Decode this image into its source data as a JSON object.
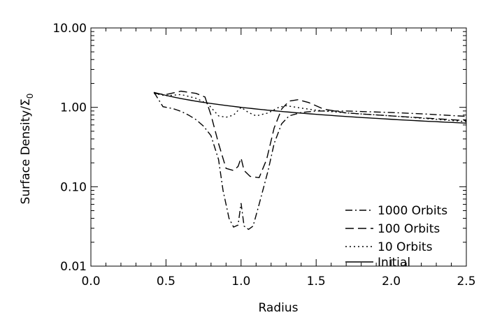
{
  "chart_data": {
    "type": "line",
    "xlabel": "Radius",
    "ylabel": "Surface Density/Σ",
    "ylabel_subscript": "0",
    "xlim": [
      0.0,
      2.5
    ],
    "ylim": [
      0.01,
      10.0
    ],
    "yscale": "log",
    "grid": false,
    "legend_position": "bottom-right",
    "x_ticks": [
      0.0,
      0.5,
      1.0,
      1.5,
      2.0,
      2.5
    ],
    "x_tick_labels": [
      "0.0",
      "0.5",
      "1.0",
      "1.5",
      "2.0",
      "2.5"
    ],
    "y_ticks": [
      0.01,
      0.1,
      1.0,
      10.0
    ],
    "y_tick_labels": [
      "0.01",
      "0.10",
      "1.00",
      "10.00"
    ],
    "series": [
      {
        "name": "1000 Orbits",
        "style": "dashdot",
        "points": [
          [
            0.42,
            1.55
          ],
          [
            0.48,
            1.02
          ],
          [
            0.55,
            0.96
          ],
          [
            0.6,
            0.89
          ],
          [
            0.65,
            0.8
          ],
          [
            0.7,
            0.7
          ],
          [
            0.75,
            0.58
          ],
          [
            0.8,
            0.44
          ],
          [
            0.85,
            0.22
          ],
          [
            0.88,
            0.09
          ],
          [
            0.92,
            0.04
          ],
          [
            0.95,
            0.031
          ],
          [
            0.98,
            0.033
          ],
          [
            1.0,
            0.062
          ],
          [
            1.02,
            0.032
          ],
          [
            1.05,
            0.029
          ],
          [
            1.08,
            0.032
          ],
          [
            1.12,
            0.06
          ],
          [
            1.18,
            0.16
          ],
          [
            1.22,
            0.35
          ],
          [
            1.27,
            0.62
          ],
          [
            1.32,
            0.78
          ],
          [
            1.4,
            0.86
          ],
          [
            1.5,
            0.9
          ],
          [
            1.7,
            0.9
          ],
          [
            2.0,
            0.86
          ],
          [
            2.2,
            0.83
          ],
          [
            2.5,
            0.77
          ]
        ]
      },
      {
        "name": "100 Orbits",
        "style": "dashed",
        "points": [
          [
            0.42,
            1.5
          ],
          [
            0.5,
            1.45
          ],
          [
            0.6,
            1.6
          ],
          [
            0.7,
            1.5
          ],
          [
            0.76,
            1.35
          ],
          [
            0.8,
            0.8
          ],
          [
            0.85,
            0.35
          ],
          [
            0.9,
            0.17
          ],
          [
            0.95,
            0.16
          ],
          [
            0.98,
            0.18
          ],
          [
            1.0,
            0.23
          ],
          [
            1.02,
            0.16
          ],
          [
            1.06,
            0.135
          ],
          [
            1.12,
            0.13
          ],
          [
            1.17,
            0.22
          ],
          [
            1.22,
            0.55
          ],
          [
            1.27,
            0.95
          ],
          [
            1.32,
            1.2
          ],
          [
            1.38,
            1.25
          ],
          [
            1.45,
            1.15
          ],
          [
            1.55,
            0.95
          ],
          [
            1.7,
            0.85
          ],
          [
            2.0,
            0.78
          ],
          [
            2.5,
            0.68
          ]
        ]
      },
      {
        "name": "10 Orbits",
        "style": "dotted",
        "points": [
          [
            0.42,
            1.5
          ],
          [
            0.5,
            1.4
          ],
          [
            0.6,
            1.45
          ],
          [
            0.7,
            1.3
          ],
          [
            0.78,
            1.1
          ],
          [
            0.85,
            0.78
          ],
          [
            0.9,
            0.75
          ],
          [
            0.95,
            0.8
          ],
          [
            1.0,
            1.0
          ],
          [
            1.05,
            0.86
          ],
          [
            1.1,
            0.78
          ],
          [
            1.18,
            0.85
          ],
          [
            1.25,
            1.0
          ],
          [
            1.3,
            1.05
          ],
          [
            1.4,
            0.98
          ],
          [
            1.5,
            0.92
          ],
          [
            1.7,
            0.85
          ],
          [
            2.0,
            0.78
          ],
          [
            2.5,
            0.66
          ]
        ]
      },
      {
        "name": "Initial",
        "style": "solid",
        "function": "power",
        "coefficient": 1.0,
        "exponent": -0.5,
        "x_range": [
          0.42,
          2.5
        ]
      }
    ]
  }
}
